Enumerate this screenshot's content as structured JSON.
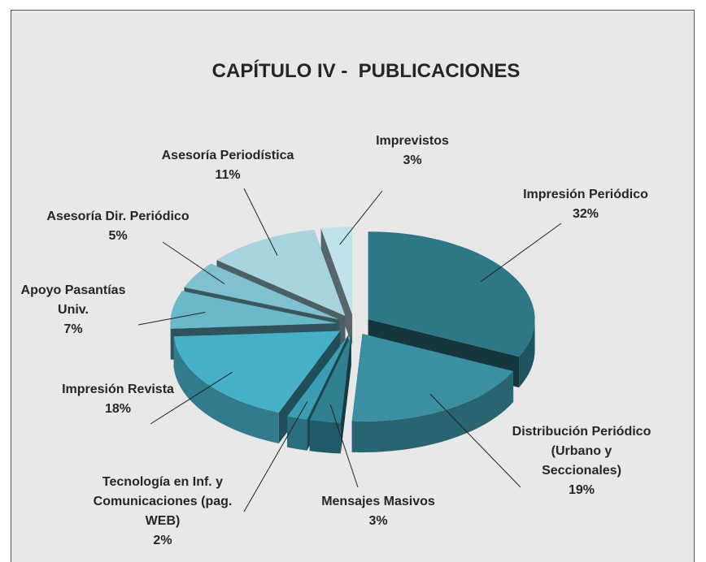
{
  "chart_data": {
    "type": "pie",
    "title": "CAPÍTULO IV -  PUBLICACIONES",
    "categories": [
      "Impresión Periódico",
      "Distribución Periódico\n(Urbano y\nSeccionales)",
      "Mensajes Masivos",
      "Tecnología en Inf. y\nComunicaciones (pag.\nWEB)",
      "Impresión Revista",
      "Apoyo Pasantías\nUniv.",
      "Asesoría Dir. Periódico",
      "Asesoría Periodística",
      "Imprevistos"
    ],
    "values": [
      32,
      19,
      3,
      2,
      18,
      7,
      5,
      11,
      3
    ],
    "value_labels": [
      "32%",
      "19%",
      "3%",
      "2%",
      "18%",
      "7%",
      "5%",
      "11%",
      "3%"
    ],
    "colors": [
      "#2d7786",
      "#3a8fa2",
      "#2f8091",
      "#3b9db2",
      "#46b0c8",
      "#6bb8ca",
      "#80c1d0",
      "#a8d4de",
      "#c0e3eb"
    ]
  }
}
